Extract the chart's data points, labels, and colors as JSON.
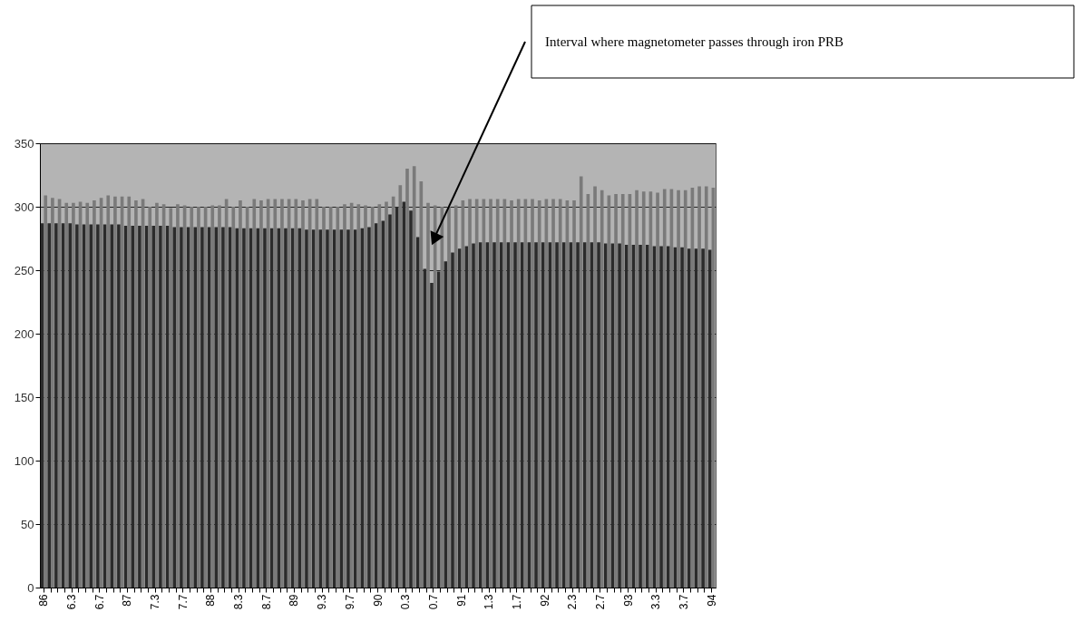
{
  "chart_data": {
    "type": "bar",
    "categories": [
      "86",
      null,
      null,
      null,
      "6.3",
      null,
      null,
      null,
      "6.7",
      null,
      null,
      null,
      "87",
      null,
      null,
      null,
      "7.3",
      null,
      null,
      null,
      "7.7",
      null,
      null,
      null,
      "88",
      null,
      null,
      null,
      "8.3",
      null,
      null,
      null,
      "8.7",
      null,
      null,
      null,
      "89",
      null,
      null,
      null,
      "9.3",
      null,
      null,
      null,
      "9.7",
      null,
      null,
      null,
      "90",
      null,
      null,
      null,
      "0.3",
      null,
      null,
      null,
      "0.7",
      null,
      null,
      null,
      "91",
      null,
      null,
      null,
      "1.3",
      null,
      null,
      null,
      "1.7",
      null,
      null,
      null,
      "92",
      null,
      null,
      null,
      "2.3",
      null,
      null,
      null,
      "2.7",
      null,
      null,
      null,
      "93",
      null,
      null,
      null,
      "3.3",
      null,
      null,
      null,
      "3.7",
      null,
      null,
      null,
      "94"
    ],
    "series": [
      {
        "color": "#2b2b2b",
        "values": [
          287,
          287,
          287,
          287,
          287,
          286,
          286,
          286,
          286,
          286,
          286,
          286,
          285,
          285,
          285,
          285,
          285,
          285,
          285,
          284,
          284,
          284,
          284,
          284,
          284,
          284,
          284,
          284,
          283,
          283,
          283,
          283,
          283,
          283,
          283,
          283,
          283,
          283,
          282,
          282,
          282,
          282,
          282,
          282,
          282,
          282,
          283,
          284,
          287,
          289,
          294,
          300,
          304,
          297,
          276,
          251,
          240,
          249,
          257,
          264,
          267,
          269,
          271,
          272,
          272,
          272,
          272,
          272,
          272,
          272,
          272,
          272,
          272,
          272,
          272,
          272,
          272,
          272,
          272,
          272,
          272,
          271,
          271,
          271,
          270,
          270,
          270,
          270,
          269,
          269,
          269,
          268,
          268,
          267,
          267,
          267,
          266
        ]
      },
      {
        "color": "#7a7a7a",
        "values": [
          309,
          307,
          306,
          303,
          303,
          304,
          303,
          305,
          307,
          309,
          308,
          308,
          308,
          305,
          306,
          300,
          303,
          302,
          299,
          302,
          301,
          300,
          300,
          300,
          301,
          301,
          306,
          300,
          305,
          300,
          306,
          305,
          306,
          306,
          306,
          306,
          306,
          305,
          306,
          306,
          300,
          300,
          300,
          302,
          303,
          302,
          301,
          300,
          302,
          304,
          308,
          317,
          330,
          332,
          320,
          303,
          301,
          300,
          300,
          301,
          305,
          306,
          306,
          306,
          306,
          306,
          306,
          305,
          306,
          306,
          306,
          305,
          306,
          306,
          306,
          305,
          305,
          324,
          310,
          316,
          313,
          309,
          310,
          310,
          310,
          313,
          312,
          312,
          311,
          314,
          314,
          313,
          313,
          315,
          316,
          316,
          315
        ]
      }
    ],
    "ylim": [
      0,
      350
    ],
    "yticks": [
      0,
      50,
      100,
      150,
      200,
      250,
      300,
      350
    ],
    "grid": "y",
    "annotations": [
      "Interval where magnetometer passes through iron PRB"
    ]
  }
}
